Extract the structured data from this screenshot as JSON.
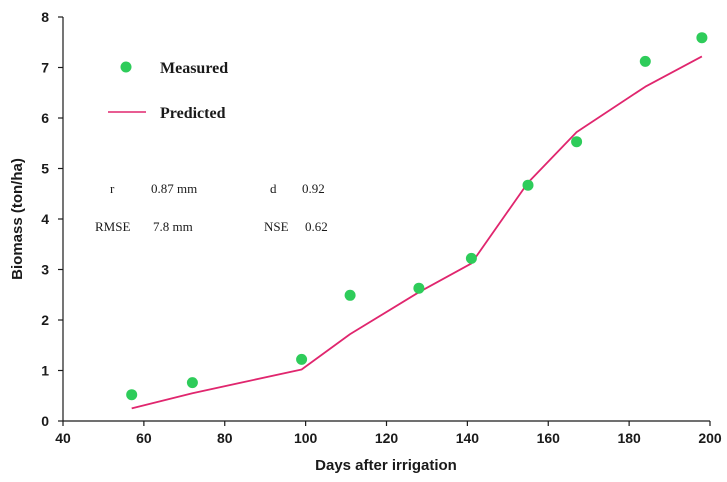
{
  "chart_data": {
    "type": "scatter",
    "xlabel": "Days after irrigation",
    "ylabel": "Biomass (ton/ha)",
    "xlim": [
      40,
      200
    ],
    "ylim": [
      0,
      8
    ],
    "x_ticks": [
      40,
      60,
      80,
      100,
      120,
      140,
      160,
      180,
      200
    ],
    "y_ticks": [
      0,
      1,
      2,
      3,
      4,
      5,
      6,
      7,
      8
    ],
    "grid": false,
    "legend_position": "top-left",
    "series": [
      {
        "name": "Measured",
        "kind": "scatter",
        "color": "#2ecc5a",
        "x": [
          57,
          72,
          99,
          111,
          128,
          141,
          155,
          167,
          184,
          198
        ],
        "y": [
          0.52,
          0.76,
          1.22,
          2.49,
          2.63,
          3.22,
          4.67,
          5.53,
          7.12,
          7.59
        ]
      },
      {
        "name": "Predicted",
        "kind": "line",
        "color": "#e0266e",
        "x": [
          57,
          72,
          99,
          111,
          128,
          141,
          155,
          167,
          184,
          198
        ],
        "y": [
          0.25,
          0.55,
          1.02,
          1.72,
          2.55,
          3.12,
          4.72,
          5.72,
          6.62,
          7.22
        ]
      }
    ],
    "stats": {
      "r_label": "r",
      "r_value": "0.87 mm",
      "d_label": "d",
      "d_value": "0.92",
      "rmse_label": "RMSE",
      "rmse_value": "7.8 mm",
      "nse_label": "NSE",
      "nse_value": "0.62"
    }
  }
}
